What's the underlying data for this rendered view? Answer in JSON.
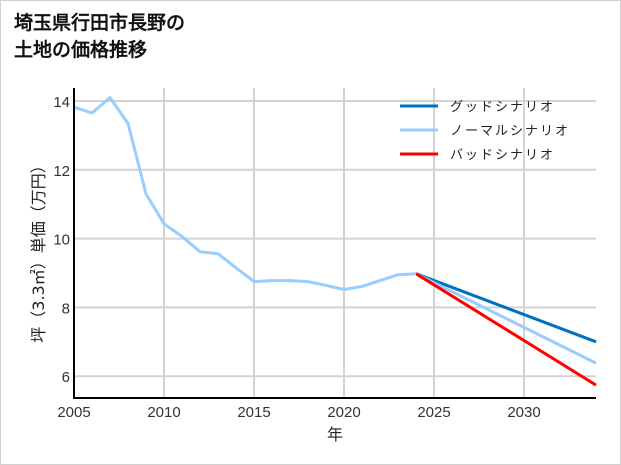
{
  "title_line1": "埼玉県行田市長野の",
  "title_line2": "土地の価格推移",
  "chart_data": {
    "type": "line",
    "title": "埼玉県行田市長野の土地の価格推移",
    "xlabel": "年",
    "ylabel": "坪（3.3㎡）単価（万円）",
    "xlim": [
      2005,
      2034
    ],
    "ylim": [
      5.3,
      14.5
    ],
    "xticks": [
      2005,
      2010,
      2015,
      2020,
      2025,
      2030
    ],
    "yticks": [
      6,
      8,
      10,
      12,
      14
    ],
    "grid": true,
    "legend_position": "upper right",
    "series": [
      {
        "name": "historical",
        "color": "#99ccff",
        "x": [
          2005,
          2006,
          2007,
          2008,
          2009,
          2010,
          2011,
          2012,
          2013,
          2014,
          2015,
          2016,
          2017,
          2018,
          2019,
          2020,
          2021,
          2022,
          2023,
          2024
        ],
        "values": [
          13.82,
          13.65,
          14.1,
          13.35,
          11.3,
          10.43,
          10.06,
          9.62,
          9.56,
          9.15,
          8.75,
          8.78,
          8.78,
          8.75,
          8.64,
          8.52,
          8.61,
          8.78,
          8.95,
          8.98
        ]
      },
      {
        "name": "グッドシナリオ",
        "color": "#0070c0",
        "x": [
          2024,
          2034
        ],
        "values": [
          8.98,
          7.0
        ]
      },
      {
        "name": "ノーマルシナリオ",
        "color": "#99ccff",
        "x": [
          2024,
          2034
        ],
        "values": [
          8.98,
          6.38
        ]
      },
      {
        "name": "バッドシナリオ",
        "color": "#ff0000",
        "x": [
          2024,
          2034
        ],
        "values": [
          8.98,
          5.74
        ]
      }
    ]
  },
  "legend": [
    {
      "label": "グッドシナリオ",
      "color": "#0070c0"
    },
    {
      "label": "ノーマルシナリオ",
      "color": "#99ccff"
    },
    {
      "label": "バッドシナリオ",
      "color": "#ff0000"
    }
  ]
}
